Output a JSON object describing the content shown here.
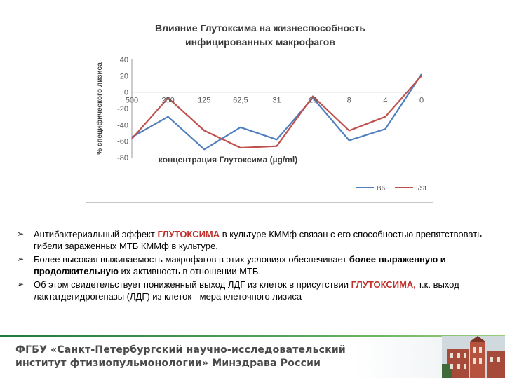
{
  "chart_data": {
    "type": "line",
    "title_line1": "Влияние Глутоксима на жизнеспособность",
    "title_line2": "инфицированных макрофагов",
    "xlabel": "концентрация Глутоксима (µg/ml)",
    "ylabel": "% специфического лизиса",
    "categories": [
      "500",
      "250",
      "125",
      "62,5",
      "31",
      "16",
      "8",
      "4",
      "0"
    ],
    "ylim": [
      -80,
      40
    ],
    "yticks": [
      "40",
      "20",
      "0",
      "-20",
      "-40",
      "-60",
      "-80"
    ],
    "ytick_values": [
      40,
      20,
      0,
      -20,
      -40,
      -60,
      -80
    ],
    "series": [
      {
        "name": "B6",
        "color": "#4f7fbf",
        "values": [
          -55,
          -30,
          -70,
          -43,
          -58,
          -7,
          -59,
          -45,
          22
        ]
      },
      {
        "name": "I/St",
        "color": "#c0504d",
        "values": [
          -57,
          -7,
          -47,
          -68,
          -66,
          -5,
          -47,
          -30,
          20
        ]
      }
    ],
    "legend_position": "bottom-right"
  },
  "bullets": [
    {
      "parts": [
        {
          "t": "Антибактериальный эффект ",
          "s": ""
        },
        {
          "t": "ГЛУТОКСИМА",
          "s": "red"
        },
        {
          "t": "  в культуре КММф связан с его способностью препятствовать гибели зараженных МТБ КММф в культуре.",
          "s": ""
        }
      ]
    },
    {
      "parts": [
        {
          "t": "Более высокая выживаемость макрофагов в этих условиях  обеспечивает ",
          "s": ""
        },
        {
          "t": "более выраженную и продолжительную",
          "s": "b"
        },
        {
          "t": " их активность в отношении МТБ.",
          "s": ""
        }
      ]
    },
    {
      "parts": [
        {
          "t": "Об этом свидетельствует пониженный выход ЛДГ из клеток в присутствии ",
          "s": ""
        },
        {
          "t": "ГЛУТОКСИМА,",
          "s": "red"
        },
        {
          "t": " т.к. выход лактатдегидрогеназы (ЛДГ) из клеток - мера клеточного лизиса",
          "s": ""
        }
      ]
    }
  ],
  "footer": {
    "line1": "ФГБУ «Санкт-Петербургский научно-исследовательский",
    "line2": "институт фтизиопульмонологии» Минздрава России"
  }
}
